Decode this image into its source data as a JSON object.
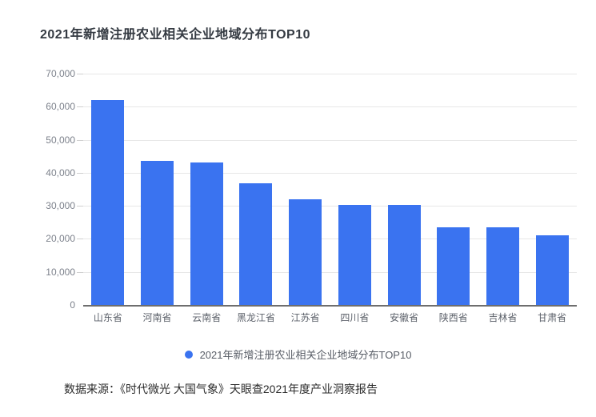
{
  "header": {
    "title": "2021年新增注册农业相关企业地域分布TOP10"
  },
  "chart_data": {
    "type": "bar",
    "title": "2021年新增注册农业相关企业地域分布TOP10",
    "categories": [
      "山东省",
      "河南省",
      "云南省",
      "黑龙江省",
      "江苏省",
      "四川省",
      "安徽省",
      "陕西省",
      "吉林省",
      "甘肃省"
    ],
    "values": [
      62000,
      43500,
      43200,
      36700,
      31900,
      30400,
      30300,
      23600,
      23500,
      21100
    ],
    "xlabel": "",
    "ylabel": "",
    "ylim": [
      0,
      70000
    ],
    "ytick_step": 10000,
    "yticks": [
      "0",
      "10,000",
      "20,000",
      "30,000",
      "40,000",
      "50,000",
      "60,000",
      "70,000"
    ],
    "grid": true,
    "legend_entries": [
      "2021年新增注册农业相关企业地域分布TOP10"
    ],
    "legend_position": "bottom",
    "bar_color": "#3a73f0"
  },
  "legend": {
    "label": "2021年新增注册农业相关企业地域分布TOP10"
  },
  "footer": {
    "source_text": "数据来源：《时代微光 大国气象》天眼查2021年度产业洞察报告"
  },
  "colors": {
    "bar": "#3a73f0",
    "axis_line": "#6e6e6e",
    "gridline": "#e7e7e7",
    "title_text": "#343a42",
    "axis_label": "#7d828c",
    "category_label": "#5d626b",
    "legend_text": "#585d66",
    "footer_text": "#2b2b2b"
  }
}
